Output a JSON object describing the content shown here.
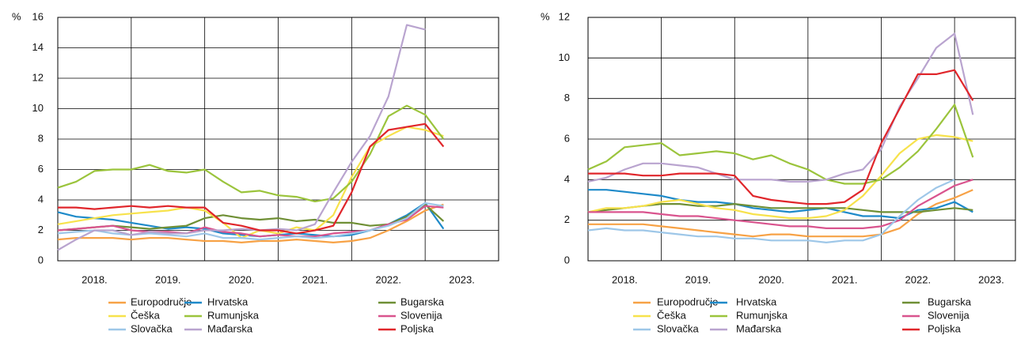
{
  "chart_data": [
    {
      "type": "line",
      "y_label": "%",
      "x": [
        2018,
        2018.25,
        2018.5,
        2018.75,
        2019,
        2019.25,
        2019.5,
        2019.75,
        2020,
        2020.25,
        2020.5,
        2020.75,
        2021,
        2021.25,
        2021.5,
        2021.75,
        2022,
        2022.25,
        2022.5,
        2022.75,
        2023,
        2023.25
      ],
      "xlim": [
        2018,
        2024
      ],
      "xticks": [
        {
          "value": 2018.5,
          "label": "2018."
        },
        {
          "value": 2019.5,
          "label": "2019."
        },
        {
          "value": 2020.5,
          "label": "2020."
        },
        {
          "value": 2021.5,
          "label": "2021."
        },
        {
          "value": 2022.5,
          "label": "2022."
        },
        {
          "value": 2023.5,
          "label": "2023."
        }
      ],
      "xgrid": [
        2019,
        2020,
        2021,
        2022,
        2023
      ],
      "ylim": [
        0,
        16
      ],
      "yticks": [
        0,
        2,
        4,
        6,
        8,
        10,
        12,
        14,
        16
      ],
      "grid": true,
      "series": [
        {
          "name": "Europodručje",
          "color": "#f7a246",
          "values": [
            1.4,
            1.5,
            1.5,
            1.5,
            1.4,
            1.5,
            1.5,
            1.4,
            1.3,
            1.3,
            1.2,
            1.3,
            1.3,
            1.4,
            1.3,
            1.2,
            1.3,
            1.5,
            2.0,
            2.6,
            3.3,
            3.7
          ]
        },
        {
          "name": "Hrvatska",
          "color": "#1e8ac9",
          "values": [
            3.2,
            2.9,
            2.8,
            2.7,
            2.5,
            2.3,
            2.1,
            2.2,
            2.1,
            1.8,
            1.7,
            1.6,
            1.7,
            1.8,
            1.7,
            1.6,
            1.7,
            2.0,
            2.4,
            3.0,
            3.8,
            2.1
          ]
        },
        {
          "name": "Bugarska",
          "color": "#6f8f35",
          "values": [
            2.0,
            2.1,
            2.2,
            2.3,
            2.2,
            2.1,
            2.2,
            2.3,
            2.8,
            3.0,
            2.8,
            2.7,
            2.8,
            2.6,
            2.7,
            2.5,
            2.5,
            2.3,
            2.4,
            2.9,
            3.7,
            2.6
          ]
        },
        {
          "name": "Češka",
          "color": "#f7e24c",
          "values": [
            2.4,
            2.6,
            2.8,
            3.0,
            3.1,
            3.2,
            3.3,
            3.5,
            3.3,
            2.5,
            1.5,
            2.0,
            1.8,
            2.2,
            2.0,
            3.0,
            5.5,
            7.5,
            8.2,
            8.8,
            8.6,
            8.2
          ]
        },
        {
          "name": "Rumunjska",
          "color": "#9bc43c",
          "values": [
            4.8,
            5.2,
            5.9,
            6.0,
            6.0,
            6.3,
            5.9,
            5.8,
            6.0,
            5.2,
            4.5,
            4.6,
            4.3,
            4.2,
            3.9,
            4.1,
            5.2,
            7.0,
            9.5,
            10.2,
            9.6,
            8.0
          ]
        },
        {
          "name": "Slovenija",
          "color": "#d9548e",
          "values": [
            2.0,
            2.1,
            2.2,
            2.3,
            2.0,
            1.9,
            1.9,
            1.8,
            2.2,
            1.9,
            1.8,
            1.6,
            1.7,
            1.6,
            1.6,
            1.8,
            1.9,
            2.0,
            2.4,
            2.7,
            3.6,
            3.5
          ]
        },
        {
          "name": "Slovačka",
          "color": "#9ec7e8",
          "values": [
            1.8,
            1.9,
            2.0,
            1.8,
            1.7,
            1.8,
            1.7,
            1.6,
            1.8,
            1.5,
            1.5,
            1.4,
            1.5,
            1.6,
            1.5,
            1.6,
            1.8,
            2.0,
            2.3,
            2.8,
            3.8,
            3.6
          ]
        },
        {
          "name": "Mađarska",
          "color": "#b9a4cf",
          "values": [
            0.7,
            1.4,
            2.0,
            2.0,
            1.7,
            1.9,
            1.8,
            1.8,
            2.0,
            2.0,
            2.1,
            2.0,
            2.1,
            2.0,
            2.4,
            4.5,
            6.5,
            8.2,
            10.8,
            15.5,
            15.2,
            null
          ]
        },
        {
          "name": "Poljska",
          "color": "#e0262b",
          "values": [
            3.5,
            3.5,
            3.4,
            3.5,
            3.6,
            3.5,
            3.6,
            3.5,
            3.5,
            2.5,
            2.3,
            2.0,
            2.0,
            1.8,
            2.0,
            2.3,
            4.5,
            7.5,
            8.6,
            8.8,
            9.0,
            7.5
          ]
        }
      ]
    },
    {
      "type": "line",
      "y_label": "%",
      "x": [
        2018,
        2018.25,
        2018.5,
        2018.75,
        2019,
        2019.25,
        2019.5,
        2019.75,
        2020,
        2020.25,
        2020.5,
        2020.75,
        2021,
        2021.25,
        2021.5,
        2021.75,
        2022,
        2022.25,
        2022.5,
        2022.75,
        2023,
        2023.25
      ],
      "xlim": [
        2018,
        2023.83
      ],
      "xticks": [
        {
          "value": 2018.5,
          "label": "2018."
        },
        {
          "value": 2019.5,
          "label": "2019."
        },
        {
          "value": 2020.5,
          "label": "2020."
        },
        {
          "value": 2021.5,
          "label": "2021."
        },
        {
          "value": 2022.5,
          "label": "2022."
        },
        {
          "value": 2023.5,
          "label": "2023."
        }
      ],
      "xgrid": [
        2019,
        2020,
        2021,
        2022,
        2023
      ],
      "ylim": [
        0,
        12
      ],
      "yticks": [
        0,
        2,
        4,
        6,
        8,
        10,
        12
      ],
      "grid": true,
      "series": [
        {
          "name": "Europodručje",
          "color": "#f7a246",
          "values": [
            1.8,
            1.8,
            1.8,
            1.8,
            1.7,
            1.6,
            1.5,
            1.4,
            1.3,
            1.2,
            1.3,
            1.3,
            1.2,
            1.2,
            1.2,
            1.2,
            1.3,
            1.6,
            2.3,
            2.8,
            3.1,
            3.5
          ]
        },
        {
          "name": "Hrvatska",
          "color": "#1e8ac9",
          "values": [
            3.5,
            3.5,
            3.4,
            3.3,
            3.2,
            3.0,
            2.9,
            2.9,
            2.8,
            2.6,
            2.5,
            2.4,
            2.5,
            2.6,
            2.4,
            2.2,
            2.2,
            2.1,
            2.5,
            2.6,
            2.9,
            2.4
          ]
        },
        {
          "name": "Bugarska",
          "color": "#6f8f35",
          "values": [
            2.4,
            2.5,
            2.6,
            2.7,
            2.8,
            2.8,
            2.7,
            2.7,
            2.8,
            2.7,
            2.6,
            2.6,
            2.6,
            2.6,
            2.6,
            2.5,
            2.4,
            2.4,
            2.4,
            2.5,
            2.6,
            2.5
          ]
        },
        {
          "name": "Češka",
          "color": "#f7e24c",
          "values": [
            2.4,
            2.6,
            2.6,
            2.7,
            2.9,
            3.0,
            2.8,
            2.6,
            2.5,
            2.3,
            2.2,
            2.1,
            2.1,
            2.2,
            2.5,
            3.2,
            4.2,
            5.3,
            6.0,
            6.2,
            6.1,
            5.9
          ]
        },
        {
          "name": "Rumunjska",
          "color": "#9bc43c",
          "values": [
            4.5,
            4.9,
            5.6,
            5.7,
            5.8,
            5.2,
            5.3,
            5.4,
            5.3,
            5.0,
            5.2,
            4.8,
            4.5,
            4.0,
            3.8,
            3.8,
            4.0,
            4.6,
            5.4,
            6.5,
            7.7,
            5.1
          ]
        },
        {
          "name": "Slovenija",
          "color": "#d9548e",
          "values": [
            2.4,
            2.4,
            2.4,
            2.4,
            2.3,
            2.2,
            2.2,
            2.1,
            2.0,
            1.9,
            1.8,
            1.7,
            1.7,
            1.6,
            1.6,
            1.6,
            1.7,
            2.0,
            2.7,
            3.2,
            3.7,
            4.0
          ]
        },
        {
          "name": "Slovačka",
          "color": "#9ec7e8",
          "values": [
            1.5,
            1.6,
            1.5,
            1.5,
            1.4,
            1.3,
            1.2,
            1.2,
            1.1,
            1.1,
            1.0,
            1.0,
            1.0,
            0.9,
            1.0,
            1.0,
            1.3,
            2.2,
            3.0,
            3.6,
            4.0,
            null
          ]
        },
        {
          "name": "Mađarska",
          "color": "#b9a4cf",
          "values": [
            3.9,
            4.1,
            4.5,
            4.8,
            4.8,
            4.7,
            4.6,
            4.3,
            4.0,
            4.0,
            4.0,
            3.9,
            3.9,
            4.0,
            4.3,
            4.5,
            5.5,
            7.6,
            9.0,
            10.5,
            11.2,
            7.2
          ]
        },
        {
          "name": "Poljska",
          "color": "#e0262b",
          "values": [
            4.3,
            4.3,
            4.3,
            4.2,
            4.2,
            4.3,
            4.3,
            4.3,
            4.2,
            3.2,
            3.0,
            2.9,
            2.8,
            2.8,
            2.9,
            3.5,
            5.8,
            7.5,
            9.2,
            9.2,
            9.4,
            7.9
          ]
        }
      ]
    }
  ]
}
